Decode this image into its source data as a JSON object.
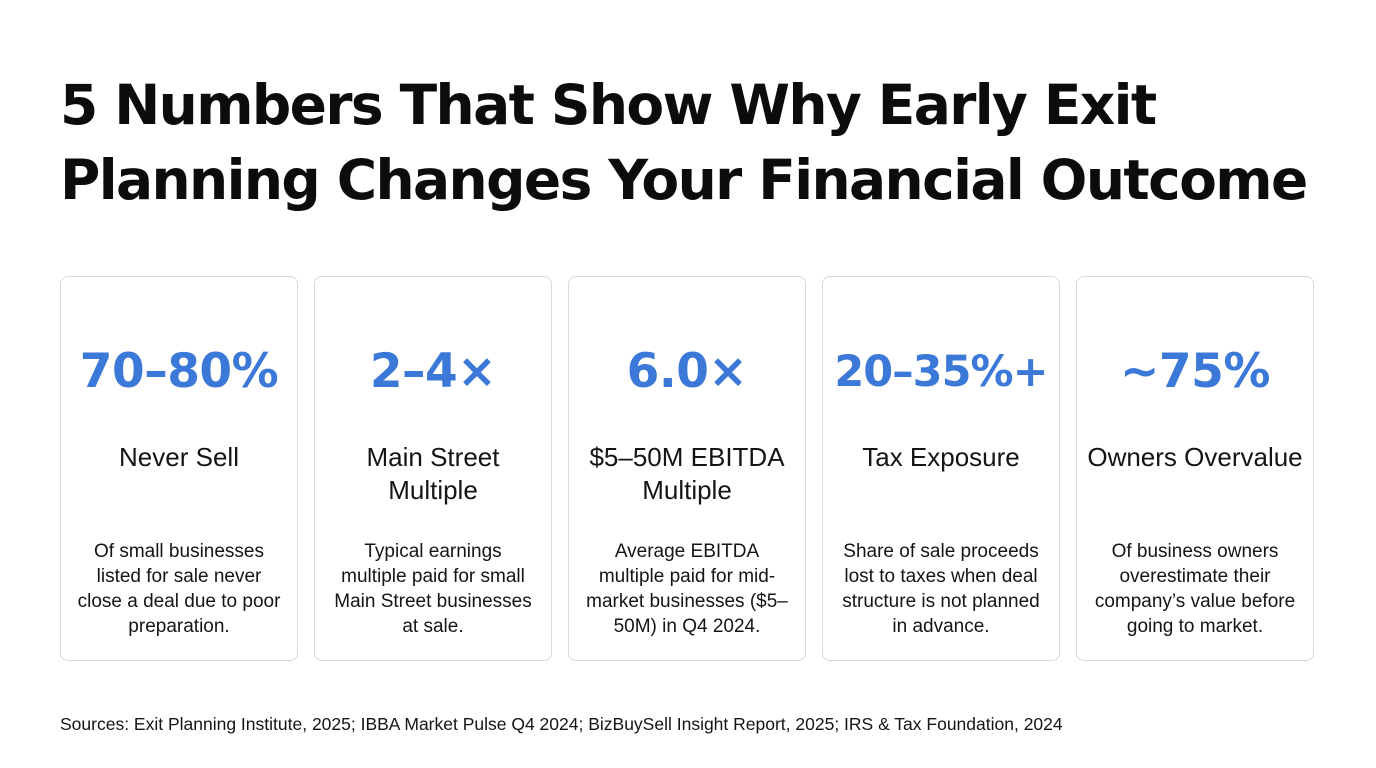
{
  "title": {
    "line1": "5 Numbers That Show Why Early Exit",
    "line2": "Planning Changes Your Financial Outcome"
  },
  "colors": {
    "accent": "#3b78d8",
    "text": "#111111",
    "card_border": "#d9d9d9",
    "background": "#ffffff"
  },
  "cards": [
    {
      "stat": "70–80%",
      "label": "Never Sell",
      "description": "Of small businesses listed for sale never close a deal due to poor preparation."
    },
    {
      "stat": "2–4×",
      "label": "Main Street Multiple",
      "description": "Typical earnings multiple paid for small Main Street businesses at sale."
    },
    {
      "stat": "6.0×",
      "label": "$5–50M EBITDA Multiple",
      "description": "Average EBITDA multiple paid for mid-market businesses ($5–50M) in Q4 2024."
    },
    {
      "stat": "20–35%+",
      "label": "Tax Exposure",
      "description": "Share of sale proceeds lost to taxes when deal structure is not planned in advance."
    },
    {
      "stat": "~75%",
      "label": "Owners Overvalue",
      "description": "Of business owners overestimate their company’s value before going to market."
    }
  ],
  "sources": "Sources: Exit Planning Institute, 2025; IBBA Market Pulse Q4 2024; BizBuySell Insight Report, 2025; IRS & Tax Foundation, 2024"
}
